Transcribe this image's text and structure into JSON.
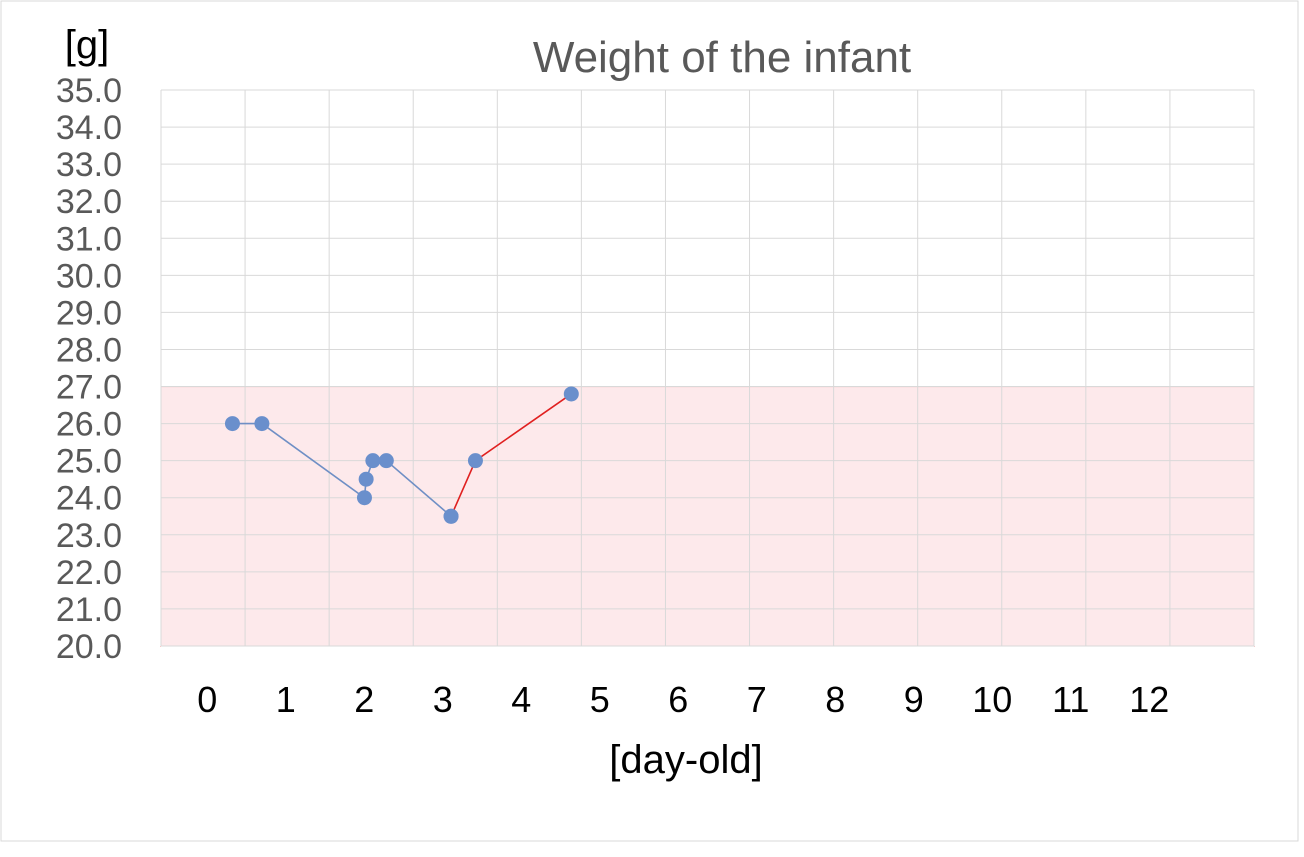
{
  "chart_data": {
    "type": "line",
    "title": "Weight of the infant",
    "ylabel": "[g]",
    "xlabel": "[day-old]",
    "xlim": [
      0,
      13
    ],
    "ylim": [
      20,
      35
    ],
    "x_ticks": [
      "0",
      "1",
      "2",
      "3",
      "4",
      "5",
      "6",
      "7",
      "8",
      "9",
      "10",
      "11",
      "12"
    ],
    "y_ticks": [
      "20.0",
      "21.0",
      "22.0",
      "23.0",
      "24.0",
      "25.0",
      "26.0",
      "27.0",
      "28.0",
      "29.0",
      "30.0",
      "31.0",
      "32.0",
      "33.0",
      "34.0",
      "35.0"
    ],
    "grid": true,
    "shaded_band": {
      "y_from": 20,
      "y_to": 27,
      "fill": "#fde9eb",
      "stroke": "#d92b2b"
    },
    "series": [
      {
        "color": "#6f8fc5",
        "marker_color": "#6a8fcc",
        "points": [
          [
            0.85,
            26.0
          ],
          [
            1.2,
            26.0
          ],
          [
            2.42,
            24.0
          ],
          [
            2.44,
            24.5
          ],
          [
            2.52,
            25.0
          ],
          [
            2.68,
            25.0
          ],
          [
            3.45,
            23.5
          ]
        ]
      },
      {
        "color": "#e02020",
        "marker_color": "#6a8fcc",
        "points": [
          [
            3.45,
            23.5
          ],
          [
            3.74,
            25.0
          ],
          [
            4.88,
            26.8
          ]
        ]
      }
    ]
  }
}
